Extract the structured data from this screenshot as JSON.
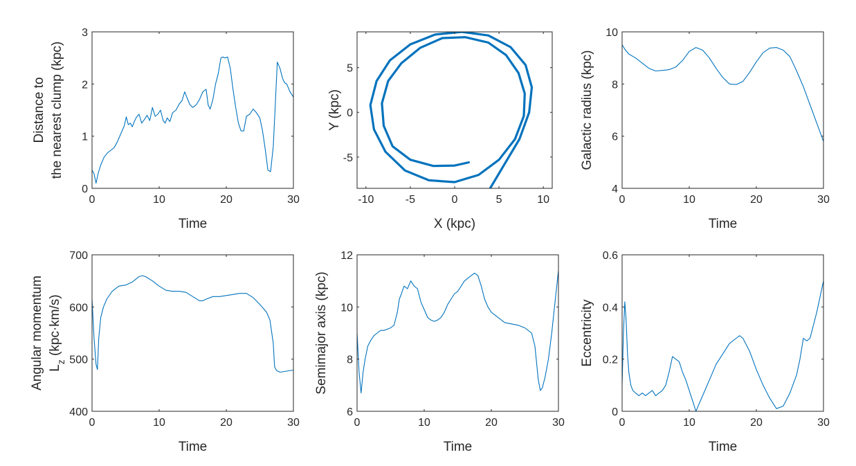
{
  "colors": {
    "series": "#0072BD",
    "axis": "#262626",
    "background": "#ffffff"
  },
  "chart_data": [
    {
      "type": "line",
      "xlabel": "Time",
      "ylabel": [
        "Distance to",
        "the nearest clump (kpc)"
      ],
      "xlim": [
        0,
        30
      ],
      "ylim": [
        0,
        3
      ],
      "xticks": [
        0,
        10,
        20,
        30
      ],
      "yticks": [
        0,
        1,
        2,
        3
      ],
      "xtick_labels": [
        "0",
        "10",
        "20",
        "30"
      ],
      "ytick_labels": [
        "0",
        "1",
        "2",
        "3"
      ],
      "grid": false,
      "series": [
        {
          "x": [
            0,
            0.3,
            0.6,
            0.9,
            1.3,
            1.8,
            2.3,
            2.8,
            3.3,
            3.8,
            4.3,
            4.8,
            5.1,
            5.4,
            5.7,
            6.0,
            6.3,
            6.6,
            7.0,
            7.4,
            7.8,
            8.2,
            8.6,
            9.0,
            9.4,
            9.8,
            10.2,
            10.6,
            10.9,
            11.2,
            11.6,
            12.0,
            12.5,
            13.0,
            13.4,
            13.8,
            14.2,
            14.6,
            15.0,
            15.5,
            16.0,
            16.5,
            17.0,
            17.3,
            17.6,
            18.0,
            18.4,
            18.8,
            19.2,
            19.5,
            19.8,
            20.2,
            20.6,
            21.0,
            21.4,
            21.8,
            22.2,
            22.6,
            23.0,
            23.5,
            24.0,
            24.5,
            25.0,
            25.4,
            25.8,
            26.2,
            26.6,
            27.0,
            27.3,
            27.6,
            28.0,
            28.4,
            28.7,
            29.0,
            29.5,
            30.0
          ],
          "y": [
            0.35,
            0.28,
            0.1,
            0.28,
            0.45,
            0.6,
            0.68,
            0.73,
            0.78,
            0.9,
            1.05,
            1.2,
            1.37,
            1.22,
            1.25,
            1.18,
            1.28,
            1.36,
            1.42,
            1.25,
            1.32,
            1.4,
            1.3,
            1.55,
            1.38,
            1.42,
            1.5,
            1.3,
            1.25,
            1.35,
            1.28,
            1.45,
            1.5,
            1.62,
            1.68,
            1.85,
            1.72,
            1.6,
            1.55,
            1.6,
            1.7,
            1.85,
            1.9,
            1.6,
            1.52,
            1.7,
            2.0,
            2.2,
            2.5,
            2.52,
            2.5,
            2.52,
            2.3,
            1.9,
            1.55,
            1.25,
            1.1,
            1.1,
            1.38,
            1.42,
            1.52,
            1.45,
            1.35,
            1.1,
            0.75,
            0.35,
            0.32,
            0.8,
            1.6,
            2.42,
            2.3,
            2.1,
            2.02,
            2.0,
            1.85,
            1.75
          ]
        }
      ]
    },
    {
      "type": "line",
      "xlabel": "X (kpc)",
      "ylabel": [
        "Y (kpc)"
      ],
      "xlim": [
        -11,
        11
      ],
      "ylim": [
        -8.5,
        9
      ],
      "xticks": [
        -10,
        -5,
        0,
        5,
        10
      ],
      "yticks": [
        -5,
        0,
        5
      ],
      "xtick_labels": [
        "-10",
        "-5",
        "0",
        "5",
        "10"
      ],
      "ytick_labels": [
        "-5",
        "0",
        "5"
      ],
      "grid": false,
      "series": [
        {
          "x": [
            1.6,
            0.0,
            -2.4,
            -5.0,
            -7.0,
            -8.0,
            -8.2,
            -7.5,
            -6.0,
            -3.9,
            -1.4,
            1.2,
            3.8,
            5.8,
            7.2,
            7.9,
            7.8,
            6.8,
            5.0,
            2.7,
            0.0,
            -2.9,
            -5.6,
            -7.8,
            -9.1,
            -9.5,
            -8.8,
            -7.3,
            -5.0,
            -2.2,
            0.8,
            3.8,
            6.3,
            8.0,
            8.7,
            8.4,
            7.3,
            5.5,
            4.0
          ],
          "y": [
            -5.6,
            -5.95,
            -6.0,
            -5.3,
            -3.8,
            -1.5,
            1.0,
            3.5,
            5.5,
            7.2,
            8.3,
            8.4,
            7.8,
            6.4,
            4.4,
            2.1,
            -0.4,
            -3.0,
            -5.3,
            -7.0,
            -7.8,
            -7.6,
            -6.5,
            -4.4,
            -1.9,
            0.8,
            3.5,
            5.8,
            7.6,
            8.7,
            9.0,
            8.6,
            7.3,
            5.3,
            2.8,
            0.0,
            -3.0,
            -6.0,
            -8.5
          ]
        }
      ]
    },
    {
      "type": "line",
      "xlabel": "Time",
      "ylabel": [
        "Galactic radius (kpc)"
      ],
      "xlim": [
        0,
        30
      ],
      "ylim": [
        4,
        10
      ],
      "xticks": [
        0,
        10,
        20,
        30
      ],
      "yticks": [
        4,
        6,
        8,
        10
      ],
      "xtick_labels": [
        "0",
        "10",
        "20",
        "30"
      ],
      "ytick_labels": [
        "4",
        "6",
        "8",
        "10"
      ],
      "grid": false,
      "series": [
        {
          "x": [
            0,
            0.5,
            1,
            2,
            3,
            4,
            5,
            6,
            7,
            8,
            9,
            10,
            11,
            12,
            13,
            14,
            15,
            16,
            17,
            18,
            19,
            20,
            21,
            22,
            23,
            24,
            25,
            26,
            27,
            28,
            29,
            30
          ],
          "y": [
            9.5,
            9.3,
            9.15,
            9.0,
            8.8,
            8.6,
            8.5,
            8.52,
            8.55,
            8.65,
            8.9,
            9.25,
            9.4,
            9.3,
            9.0,
            8.6,
            8.25,
            8.0,
            7.98,
            8.1,
            8.45,
            8.85,
            9.2,
            9.38,
            9.4,
            9.3,
            9.05,
            8.5,
            7.9,
            7.2,
            6.5,
            5.8
          ]
        }
      ]
    },
    {
      "type": "line",
      "xlabel": "Time",
      "ylabel": [
        "Angular momentum",
        "L_z (kpc·km/s)"
      ],
      "xlim": [
        0,
        30
      ],
      "ylim": [
        400,
        700
      ],
      "xticks": [
        0,
        10,
        20,
        30
      ],
      "yticks": [
        400,
        500,
        600,
        700
      ],
      "xtick_labels": [
        "0",
        "10",
        "20",
        "30"
      ],
      "ytick_labels": [
        "400",
        "500",
        "600",
        "700"
      ],
      "grid": false,
      "series": [
        {
          "x": [
            0,
            0.3,
            0.6,
            0.8,
            1.0,
            1.3,
            1.7,
            2.2,
            3,
            4,
            5,
            6,
            7,
            7.5,
            8,
            9,
            10,
            11,
            12,
            13,
            14,
            15,
            16,
            16.5,
            17,
            18,
            19,
            20,
            21,
            22,
            23,
            24,
            25,
            26,
            26.5,
            27,
            27.2,
            27.5,
            28,
            29,
            30
          ],
          "y": [
            615,
            540,
            490,
            480,
            540,
            580,
            600,
            615,
            630,
            640,
            642,
            648,
            658,
            660,
            658,
            650,
            640,
            632,
            630,
            630,
            628,
            620,
            612,
            612,
            615,
            620,
            620,
            622,
            624,
            626,
            626,
            618,
            605,
            590,
            575,
            530,
            485,
            478,
            475,
            477,
            479
          ]
        }
      ]
    },
    {
      "type": "line",
      "xlabel": "Time",
      "ylabel": [
        "Semimajor axis (kpc)"
      ],
      "xlim": [
        0,
        30
      ],
      "ylim": [
        6,
        12
      ],
      "xticks": [
        0,
        10,
        20,
        30
      ],
      "yticks": [
        6,
        8,
        10,
        12
      ],
      "xtick_labels": [
        "0",
        "10",
        "20",
        "30"
      ],
      "ytick_labels": [
        "6",
        "8",
        "10",
        "12"
      ],
      "grid": false,
      "series": [
        {
          "x": [
            0,
            0.3,
            0.6,
            0.9,
            1.2,
            1.6,
            2,
            2.5,
            3,
            3.5,
            4,
            4.5,
            5,
            5.5,
            6,
            6.3,
            6.6,
            7,
            7.5,
            8,
            8.5,
            9,
            9.5,
            10,
            10.5,
            11,
            11.5,
            12,
            12.5,
            13,
            13.5,
            14,
            14.5,
            15,
            15.5,
            16,
            16.5,
            17,
            17.5,
            18,
            18.5,
            19,
            19.5,
            20,
            21,
            22,
            23,
            24,
            25,
            26,
            26.5,
            27,
            27.3,
            27.6,
            28,
            28.5,
            29,
            29.5,
            30
          ],
          "y": [
            9.0,
            7.5,
            6.7,
            7.5,
            8.0,
            8.5,
            8.7,
            8.9,
            9.0,
            9.1,
            9.1,
            9.15,
            9.2,
            9.3,
            9.8,
            10.3,
            10.5,
            10.8,
            10.7,
            11.0,
            10.8,
            10.7,
            10.2,
            9.9,
            9.6,
            9.5,
            9.45,
            9.5,
            9.6,
            9.8,
            10.1,
            10.3,
            10.5,
            10.6,
            10.8,
            11.0,
            11.1,
            11.2,
            11.3,
            11.2,
            10.8,
            10.3,
            10.0,
            9.8,
            9.6,
            9.4,
            9.35,
            9.3,
            9.2,
            9.0,
            8.5,
            7.2,
            6.8,
            6.9,
            7.3,
            8.0,
            9.0,
            10.2,
            11.4
          ]
        }
      ]
    },
    {
      "type": "line",
      "xlabel": "Time",
      "ylabel": [
        "Eccentricity"
      ],
      "xlim": [
        0,
        30
      ],
      "ylim": [
        0,
        0.6
      ],
      "xticks": [
        0,
        10,
        20,
        30
      ],
      "yticks": [
        0,
        0.2,
        0.4,
        0.6
      ],
      "xtick_labels": [
        "0",
        "10",
        "20",
        "30"
      ],
      "ytick_labels": [
        "0",
        "0.2",
        "0.4",
        "0.6"
      ],
      "grid": false,
      "series": [
        {
          "x": [
            0,
            0.2,
            0.4,
            0.6,
            0.8,
            1.0,
            1.3,
            1.6,
            2,
            2.5,
            3,
            3.5,
            4,
            4.5,
            5,
            5.5,
            6,
            6.5,
            7,
            7.5,
            8,
            8.5,
            9,
            9.5,
            10,
            10.5,
            11,
            11.5,
            12,
            12.5,
            13,
            14,
            15,
            16,
            17,
            17.5,
            18,
            19,
            20,
            21,
            22,
            23,
            24,
            25,
            26,
            26.5,
            27,
            27.5,
            28,
            29,
            30
          ],
          "y": [
            0.1,
            0.3,
            0.42,
            0.35,
            0.22,
            0.15,
            0.1,
            0.08,
            0.07,
            0.06,
            0.07,
            0.06,
            0.07,
            0.08,
            0.06,
            0.07,
            0.08,
            0.1,
            0.15,
            0.21,
            0.2,
            0.19,
            0.15,
            0.12,
            0.08,
            0.04,
            0.0,
            0.03,
            0.06,
            0.09,
            0.12,
            0.18,
            0.22,
            0.26,
            0.28,
            0.29,
            0.28,
            0.23,
            0.16,
            0.1,
            0.05,
            0.01,
            0.02,
            0.07,
            0.14,
            0.2,
            0.28,
            0.27,
            0.28,
            0.38,
            0.5
          ]
        }
      ]
    }
  ]
}
